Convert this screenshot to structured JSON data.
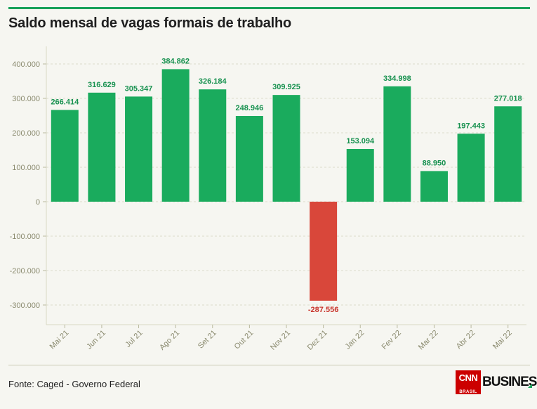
{
  "title": "Saldo mensal de vagas formais de trabalho",
  "source": "Fonte: Caged - Governo Federal",
  "logo": {
    "cnn": "CNN",
    "cnn_sub": "BRASIL",
    "business": "BUSINESS"
  },
  "colors": {
    "positive": "#1aab5d",
    "negative": "#d9473a",
    "accent": "#19a25a",
    "label_negative": "#c8332a"
  },
  "chart_data": {
    "type": "bar",
    "title": "Saldo mensal de vagas formais de trabalho",
    "categories": [
      "Mai 21",
      "Jun 21",
      "Jul 21",
      "Ago 21",
      "Set 21",
      "Out 21",
      "Nov 21",
      "Dez 21",
      "Jan 22",
      "Fev 22",
      "Mar 22",
      "Abr 22",
      "Mai 22"
    ],
    "values": [
      266414,
      316629,
      305347,
      384862,
      326184,
      248946,
      309925,
      -287556,
      153094,
      334998,
      88950,
      197443,
      277018
    ],
    "value_labels": [
      "266.414",
      "316.629",
      "305.347",
      "384.862",
      "326.184",
      "248.946",
      "309.925",
      "-287.556",
      "153.094",
      "334.998",
      "88.950",
      "197.443",
      "277.018"
    ],
    "yticks": [
      400000,
      300000,
      200000,
      100000,
      0,
      -100000,
      -200000,
      -300000
    ],
    "ytick_labels": [
      "400.000",
      "300.000",
      "200.000",
      "100.000",
      "0",
      "-100.000",
      "-200.000",
      "-300.000"
    ],
    "ylim": [
      -350000,
      450000
    ],
    "xlabel": "",
    "ylabel": "",
    "grid": true
  }
}
